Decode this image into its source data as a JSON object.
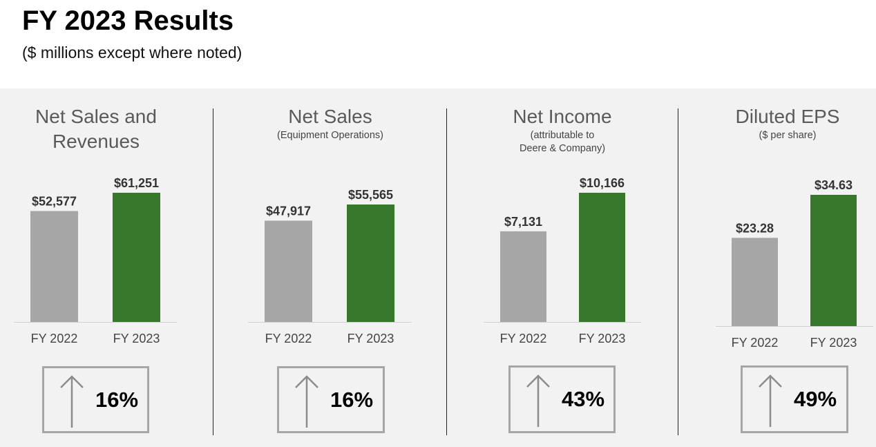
{
  "header": {
    "title": "FY 2023 Results",
    "subtitle": "($ millions except where noted)"
  },
  "colors": {
    "prior": "#a6a6a6",
    "current": "#38782c",
    "band": "#f2f2f2"
  },
  "panels": [
    {
      "title_lines": [
        "Net Sales and",
        "Revenues"
      ],
      "sub_lines": [],
      "value_labels": [
        "$52,577",
        "$61,251"
      ],
      "change": "16%",
      "change_icon": "up-arrow-icon"
    },
    {
      "title_lines": [
        "Net Sales"
      ],
      "sub_lines": [
        "(Equipment Operations)"
      ],
      "value_labels": [
        "$47,917",
        "$55,565"
      ],
      "change": "16%",
      "change_icon": "up-arrow-icon"
    },
    {
      "title_lines": [
        "Net Income"
      ],
      "sub_lines": [
        "(attributable to",
        "Deere & Company)"
      ],
      "value_labels": [
        "$7,131",
        "$10,166"
      ],
      "change": "43%",
      "change_icon": "up-arrow-icon"
    },
    {
      "title_lines": [
        "Diluted EPS"
      ],
      "sub_lines": [
        "($ per share)"
      ],
      "value_labels": [
        "$23.28",
        "$34.63"
      ],
      "change": "49%",
      "change_icon": "up-arrow-icon"
    }
  ],
  "chart_data": [
    {
      "type": "bar",
      "title": "Net Sales and Revenues",
      "categories": [
        "FY 2022",
        "FY 2023"
      ],
      "values": [
        52577,
        61251
      ]
    },
    {
      "type": "bar",
      "title": "Net Sales",
      "categories": [
        "FY 2022",
        "FY 2023"
      ],
      "values": [
        47917,
        55565
      ]
    },
    {
      "type": "bar",
      "title": "Net Income",
      "categories": [
        "FY 2022",
        "FY 2023"
      ],
      "values": [
        7131,
        10166
      ]
    },
    {
      "type": "bar",
      "title": "Diluted EPS",
      "categories": [
        "FY 2022",
        "FY 2023"
      ],
      "values": [
        23.28,
        34.63
      ]
    }
  ]
}
